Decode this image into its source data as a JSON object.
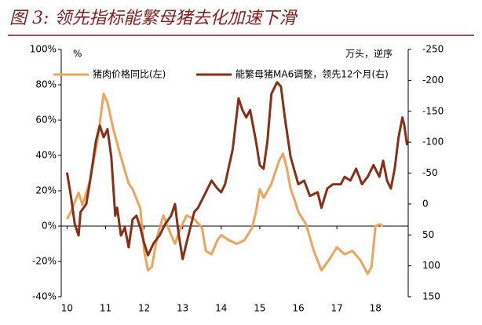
{
  "chart_data": {
    "type": "line",
    "title": "图 3: 领先指标能繁母猪去化加速下滑",
    "ylabel": "%",
    "y2label": "万头，逆序",
    "xlim": [
      9.85,
      18.85
    ],
    "xticks": [
      10,
      11,
      12,
      13,
      14,
      15,
      16,
      17,
      18
    ],
    "ylim": [
      -40,
      100
    ],
    "yticks": [
      {
        "value": -40,
        "label": "-40%"
      },
      {
        "value": -20,
        "label": "-20%"
      },
      {
        "value": 0,
        "label": "0%"
      },
      {
        "value": 20,
        "label": "20%"
      },
      {
        "value": 40,
        "label": "40%"
      },
      {
        "value": 60,
        "label": "60%"
      },
      {
        "value": 80,
        "label": "80%"
      },
      {
        "value": 100,
        "label": "100%"
      }
    ],
    "y2lim": [
      150,
      -250
    ],
    "y2ticks": [
      150,
      100,
      50,
      0,
      -50,
      -100,
      -150,
      -200,
      -250
    ],
    "legend": "top",
    "grid": false,
    "series": [
      {
        "name": "猪肉价格同比(左)",
        "color": "#f0a45a",
        "axis": "y",
        "x": [
          10.0,
          10.1,
          10.3,
          10.4,
          10.6,
          10.8,
          10.95,
          11.05,
          11.2,
          11.4,
          11.6,
          11.7,
          11.9,
          12.0,
          12.1,
          12.2,
          12.35,
          12.5,
          12.7,
          12.8,
          12.95,
          13.1,
          13.3,
          13.5,
          13.6,
          13.75,
          13.9,
          14.0,
          14.2,
          14.4,
          14.6,
          14.8,
          14.9,
          15.0,
          15.1,
          15.3,
          15.5,
          15.6,
          15.7,
          15.8,
          15.9,
          16.0,
          16.2,
          16.4,
          16.6,
          16.8,
          17.0,
          17.2,
          17.4,
          17.6,
          17.8,
          17.9,
          18.0,
          18.1,
          18.2
        ],
        "values": [
          4,
          8,
          19,
          12,
          26,
          50,
          75,
          70,
          55,
          39,
          24,
          21,
          10,
          -14,
          -25,
          -23,
          -5,
          6,
          -5,
          -10,
          -1,
          6,
          4,
          -1,
          -14,
          -16,
          -8,
          -5,
          -8,
          -10,
          -8,
          -1,
          8,
          21,
          16,
          24,
          37,
          41,
          33,
          21,
          15,
          8,
          1,
          -14,
          -25,
          -19,
          -12,
          -16,
          -14,
          -19,
          -27,
          -23,
          0,
          1,
          0
        ]
      },
      {
        "name": "能繁母猪MA6调整，领先12个月(右)",
        "color": "#8b2e16",
        "axis": "y2",
        "x": [
          10.0,
          10.1,
          10.2,
          10.3,
          10.35,
          10.5,
          10.6,
          10.75,
          10.85,
          10.95,
          11.05,
          11.15,
          11.25,
          11.3,
          11.4,
          11.5,
          11.6,
          11.7,
          11.8,
          11.9,
          12.0,
          12.1,
          12.25,
          12.4,
          12.55,
          12.7,
          12.8,
          12.9,
          13.0,
          13.1,
          13.2,
          13.3,
          13.4,
          13.6,
          13.75,
          13.9,
          14.0,
          14.1,
          14.3,
          14.45,
          14.55,
          14.65,
          14.75,
          14.9,
          15.0,
          15.1,
          15.2,
          15.3,
          15.45,
          15.55,
          15.65,
          15.8,
          16.0,
          16.15,
          16.3,
          16.5,
          16.6,
          16.75,
          16.9,
          17.1,
          17.2,
          17.35,
          17.5,
          17.65,
          17.8,
          17.95,
          18.1,
          18.2,
          18.3,
          18.4,
          18.5,
          18.6,
          18.7,
          18.75,
          18.82
        ],
        "values": [
          -51,
          -13,
          32,
          51,
          13,
          0,
          -38,
          -102,
          -127,
          -108,
          -121,
          -76,
          19,
          6,
          51,
          38,
          70,
          25,
          19,
          38,
          63,
          83,
          63,
          51,
          32,
          19,
          0,
          51,
          89,
          63,
          38,
          13,
          6,
          -19,
          -38,
          -25,
          -19,
          -32,
          -89,
          -171,
          -152,
          -140,
          -152,
          -102,
          -63,
          -57,
          -102,
          -178,
          -197,
          -190,
          -140,
          -76,
          -32,
          -38,
          -13,
          -19,
          6,
          -25,
          -32,
          -32,
          -44,
          -38,
          -57,
          -32,
          -44,
          -63,
          -44,
          -70,
          -38,
          -25,
          -57,
          -108,
          -140,
          -127,
          -95
        ]
      }
    ]
  }
}
